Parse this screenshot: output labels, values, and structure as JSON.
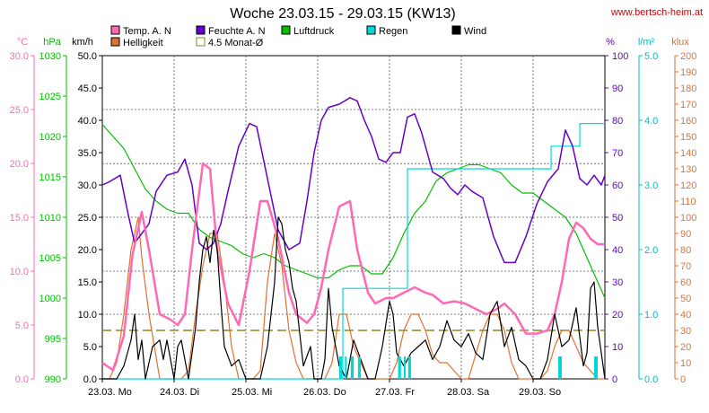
{
  "chart_data": {
    "type": "line",
    "title": "Woche 23.03.15 - 29.03.15 (KW13)",
    "source": "www.bertsch-heim.at",
    "x_labels": [
      "23.03.  Mo",
      "24.03.  Di",
      "25.03.  Mi",
      "26.03.  Do",
      "27.03.  Fr",
      "28.03.  Sa",
      "29.03.  So"
    ],
    "x_range_days": [
      0,
      7
    ],
    "grid": true,
    "axes": [
      {
        "id": "temp",
        "unit": "°C",
        "min": 0,
        "max": 30,
        "ticks": [
          "0.0",
          "5.0",
          "10.0",
          "15.0",
          "20.0",
          "25.0",
          "30.0"
        ],
        "color": "#ff69b4"
      },
      {
        "id": "press",
        "unit": "hPa",
        "min": 990,
        "max": 1030,
        "ticks": [
          "990",
          "995",
          "1000",
          "1005",
          "1010",
          "1015",
          "1020",
          "1025",
          "1030"
        ],
        "color": "#00c000"
      },
      {
        "id": "wind",
        "unit": "km/h",
        "min": 0,
        "max": 50,
        "ticks": [
          "0.0",
          "5.0",
          "10.0",
          "15.0",
          "20.0",
          "25.0",
          "30.0",
          "35.0",
          "40.0",
          "45.0",
          "50.0"
        ],
        "color": "#000000"
      },
      {
        "id": "hum",
        "unit": "%",
        "min": 0,
        "max": 100,
        "ticks": [
          "0",
          "10",
          "20",
          "30",
          "40",
          "50",
          "60",
          "70",
          "80",
          "90",
          "100"
        ],
        "color": "#6600cc"
      },
      {
        "id": "rain",
        "unit": "l/m²",
        "min": 0,
        "max": 5,
        "ticks": [
          "0.0",
          "1.0",
          "2.0",
          "3.0",
          "4.0",
          "5.0"
        ],
        "color": "#00c0c0"
      },
      {
        "id": "lux",
        "unit": "klux",
        "min": 0,
        "max": 200,
        "ticks": [
          "0",
          "10",
          "20",
          "30",
          "40",
          "50",
          "60",
          "70",
          "80",
          "90",
          "100",
          "110",
          "120",
          "130",
          "140",
          "150",
          "160",
          "170",
          "180",
          "190",
          "200"
        ],
        "color": "#e07030"
      }
    ],
    "series": [
      {
        "name": "Temp. A. N",
        "axis": "temp",
        "color": "#ff69b4",
        "x": [
          0,
          0.15,
          0.3,
          0.42,
          0.55,
          0.65,
          0.8,
          0.95,
          1.05,
          1.15,
          1.25,
          1.4,
          1.5,
          1.6,
          1.75,
          1.9,
          2.05,
          2.2,
          2.3,
          2.45,
          2.6,
          2.7,
          2.85,
          2.95,
          3.05,
          3.15,
          3.3,
          3.45,
          3.55,
          3.7,
          3.8,
          3.95,
          4.05,
          4.2,
          4.35,
          4.5,
          4.6,
          4.75,
          4.9,
          5.05,
          5.2,
          5.35,
          5.5,
          5.6,
          5.75,
          5.9,
          6.05,
          6.2,
          6.3,
          6.4,
          6.5,
          6.6,
          6.7,
          6.8,
          6.9,
          7.0
        ],
        "y": [
          1.5,
          0.8,
          4.0,
          11.5,
          15.5,
          12.0,
          6.0,
          5.5,
          5.0,
          6.0,
          12.0,
          20.0,
          19.5,
          12.0,
          7.0,
          5.0,
          10.0,
          16.5,
          16.5,
          13.0,
          8.0,
          6.0,
          5.2,
          6.0,
          8.5,
          12.0,
          16.0,
          16.5,
          12.0,
          8.0,
          7.0,
          7.5,
          7.5,
          8.0,
          8.5,
          8.0,
          7.8,
          7.0,
          7.2,
          7.0,
          6.5,
          6.0,
          6.5,
          7.0,
          6.0,
          4.2,
          4.2,
          4.5,
          6.0,
          9.0,
          13.0,
          14.5,
          14.0,
          13.0,
          12.5,
          12.5
        ]
      },
      {
        "name": "Helligkeit",
        "axis": "lux",
        "color": "#e07030",
        "x": [
          0,
          0.1,
          0.2,
          0.3,
          0.4,
          0.5,
          0.55,
          0.65,
          0.8,
          1.0,
          1.1,
          1.2,
          1.3,
          1.4,
          1.5,
          1.6,
          1.7,
          1.8,
          1.9,
          2.0,
          2.1,
          2.2,
          2.3,
          2.4,
          2.5,
          2.6,
          2.7,
          2.8,
          2.9,
          3.0,
          3.1,
          3.2,
          3.3,
          3.4,
          3.5,
          3.6,
          3.7,
          3.8,
          3.9,
          4.0,
          4.1,
          4.2,
          4.3,
          4.4,
          4.5,
          4.6,
          4.7,
          4.8,
          4.9,
          5.0,
          5.1,
          5.2,
          5.3,
          5.4,
          5.5,
          5.6,
          5.7,
          5.8,
          5.9,
          6.0,
          6.1,
          6.2,
          6.3,
          6.4,
          6.5,
          6.6,
          6.7,
          6.8,
          6.9,
          7.0
        ],
        "y": [
          0,
          0,
          10,
          40,
          80,
          100,
          75,
          40,
          0,
          0,
          0,
          5,
          40,
          70,
          90,
          90,
          60,
          20,
          0,
          0,
          0,
          5,
          60,
          90,
          70,
          30,
          10,
          0,
          0,
          0,
          0,
          10,
          40,
          40,
          20,
          10,
          0,
          0,
          0,
          0,
          10,
          30,
          40,
          40,
          30,
          15,
          10,
          10,
          5,
          0,
          0,
          15,
          30,
          40,
          40,
          30,
          10,
          0,
          0,
          0,
          0,
          5,
          20,
          30,
          30,
          20,
          10,
          5,
          0,
          0
        ]
      },
      {
        "name": "Feuchte A. N",
        "axis": "hum",
        "color": "#6600cc",
        "x": [
          0,
          0.1,
          0.25,
          0.35,
          0.45,
          0.55,
          0.65,
          0.75,
          0.9,
          1.05,
          1.15,
          1.25,
          1.35,
          1.45,
          1.55,
          1.65,
          1.75,
          1.9,
          2.05,
          2.15,
          2.3,
          2.45,
          2.6,
          2.75,
          2.85,
          2.95,
          3.05,
          3.15,
          3.3,
          3.45,
          3.55,
          3.65,
          3.75,
          3.85,
          3.95,
          4.05,
          4.15,
          4.25,
          4.35,
          4.45,
          4.6,
          4.75,
          4.85,
          4.95,
          5.05,
          5.15,
          5.3,
          5.45,
          5.6,
          5.75,
          5.9,
          6.05,
          6.2,
          6.35,
          6.45,
          6.55,
          6.65,
          6.75,
          6.85,
          6.95,
          7.0
        ],
        "y": [
          60,
          61,
          63,
          52,
          42,
          45,
          48,
          58,
          63,
          64,
          68,
          60,
          42,
          40,
          42,
          48,
          58,
          72,
          79,
          78,
          62,
          46,
          40,
          42,
          55,
          70,
          80,
          84,
          85,
          87,
          86,
          80,
          75,
          68,
          67,
          70,
          70,
          81,
          82,
          76,
          64,
          62,
          59,
          57,
          60,
          58,
          56,
          44,
          36,
          36,
          44,
          54,
          61,
          65,
          77,
          72,
          62,
          60,
          63,
          60,
          63
        ]
      },
      {
        "name": "Luftdruck",
        "axis": "press",
        "color": "#00c000",
        "x": [
          0,
          0.15,
          0.3,
          0.45,
          0.6,
          0.75,
          0.9,
          1.05,
          1.2,
          1.35,
          1.5,
          1.65,
          1.8,
          1.95,
          2.1,
          2.25,
          2.4,
          2.55,
          2.7,
          2.85,
          3.0,
          3.15,
          3.3,
          3.45,
          3.6,
          3.75,
          3.9,
          4.05,
          4.2,
          4.35,
          4.5,
          4.65,
          4.8,
          4.95,
          5.1,
          5.25,
          5.4,
          5.55,
          5.7,
          5.85,
          6.0,
          6.15,
          6.3,
          6.45,
          6.6,
          6.75,
          6.9,
          7.0
        ],
        "y": [
          1021.5,
          1020.0,
          1018.5,
          1016.0,
          1013.5,
          1012.0,
          1011.0,
          1010.5,
          1010.5,
          1008.5,
          1007.5,
          1007.0,
          1006.5,
          1005.5,
          1005.0,
          1005.5,
          1005.0,
          1004.0,
          1003.5,
          1003.0,
          1002.5,
          1002.5,
          1003.5,
          1004.0,
          1004.0,
          1003.0,
          1003.0,
          1005.0,
          1008.0,
          1010.5,
          1012.0,
          1014.5,
          1015.5,
          1016.0,
          1016.5,
          1016.5,
          1016.0,
          1015.5,
          1014.0,
          1013.0,
          1013.0,
          1012.0,
          1011.0,
          1010.0,
          1008.0,
          1005.0,
          1002.0,
          1000.0
        ]
      },
      {
        "name": "Regen",
        "axis": "rain",
        "color": "#00d8d8",
        "step": true,
        "x": [
          0,
          3.3,
          3.35,
          3.8,
          4.25,
          5.0,
          6.0,
          6.25,
          6.6,
          6.65,
          7.0
        ],
        "y": [
          0,
          0,
          1.4,
          1.4,
          3.25,
          3.25,
          3.25,
          3.6,
          3.6,
          3.95,
          3.95
        ]
      },
      {
        "name": "Wind",
        "axis": "wind",
        "color": "#000000",
        "x": [
          0,
          0.2,
          0.3,
          0.4,
          0.45,
          0.5,
          0.55,
          0.6,
          0.7,
          0.8,
          0.85,
          0.9,
          1.0,
          1.05,
          1.1,
          1.2,
          1.3,
          1.35,
          1.4,
          1.45,
          1.5,
          1.55,
          1.6,
          1.65,
          1.7,
          1.8,
          1.9,
          2.0,
          2.05,
          2.1,
          2.2,
          2.3,
          2.4,
          2.45,
          2.5,
          2.55,
          2.6,
          2.65,
          2.7,
          2.8,
          2.9,
          2.95,
          3.0,
          3.05,
          3.1,
          3.15,
          3.2,
          3.3,
          3.4,
          3.5,
          3.6,
          3.7,
          3.8,
          3.9,
          4.0,
          4.05,
          4.1,
          4.2,
          4.3,
          4.4,
          4.5,
          4.6,
          4.7,
          4.8,
          4.9,
          5.0,
          5.1,
          5.2,
          5.3,
          5.4,
          5.5,
          5.6,
          5.7,
          5.8,
          5.9,
          6.0,
          6.1,
          6.2,
          6.3,
          6.4,
          6.5,
          6.6,
          6.7,
          6.75,
          6.8,
          6.85,
          6.9,
          7.0
        ],
        "y": [
          0,
          0,
          2,
          6,
          10,
          3,
          6,
          0,
          5,
          6,
          3,
          6,
          0,
          5,
          6,
          0,
          8,
          15,
          20,
          22,
          18,
          23,
          20,
          12,
          5,
          2,
          3,
          0,
          0,
          0,
          0,
          5,
          15,
          25,
          24,
          20,
          18,
          14,
          12,
          2,
          5,
          0,
          0,
          0,
          3,
          14,
          8,
          2,
          0,
          6,
          3,
          0,
          0,
          5,
          12,
          10,
          4,
          2,
          4,
          5,
          6,
          3,
          5,
          9,
          6,
          5,
          7,
          4,
          3,
          10,
          12,
          5,
          8,
          3,
          2,
          0,
          0,
          3,
          10,
          5,
          6,
          11,
          2,
          4,
          14,
          15,
          8,
          0
        ]
      }
    ],
    "reference_line": {
      "name": "4.5 Monat-Ø",
      "axis": "wind",
      "value": 7.5,
      "color": "#8a8a1e",
      "style": "dashed"
    }
  }
}
